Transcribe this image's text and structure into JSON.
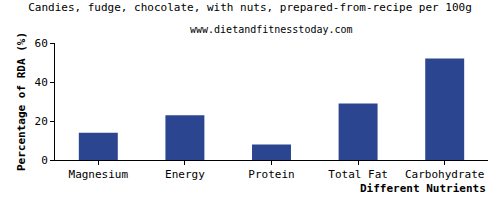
{
  "chart_data": {
    "type": "bar",
    "title": "Candies, fudge, chocolate, with nuts, prepared-from-recipe per 100g",
    "subtitle": "www.dietandfitnesstoday.com",
    "x_label": "Different Nutrients",
    "y_label": "Percentage of RDA (%)",
    "categories": [
      "Magnesium",
      "Energy",
      "Protein",
      "Total Fat",
      "Carbohydrate"
    ],
    "values": [
      14,
      23,
      8,
      29,
      52
    ],
    "color": "#2b4591",
    "ylim": [
      0,
      60
    ],
    "yticks": [
      0,
      20,
      40,
      60
    ],
    "grid": false
  }
}
